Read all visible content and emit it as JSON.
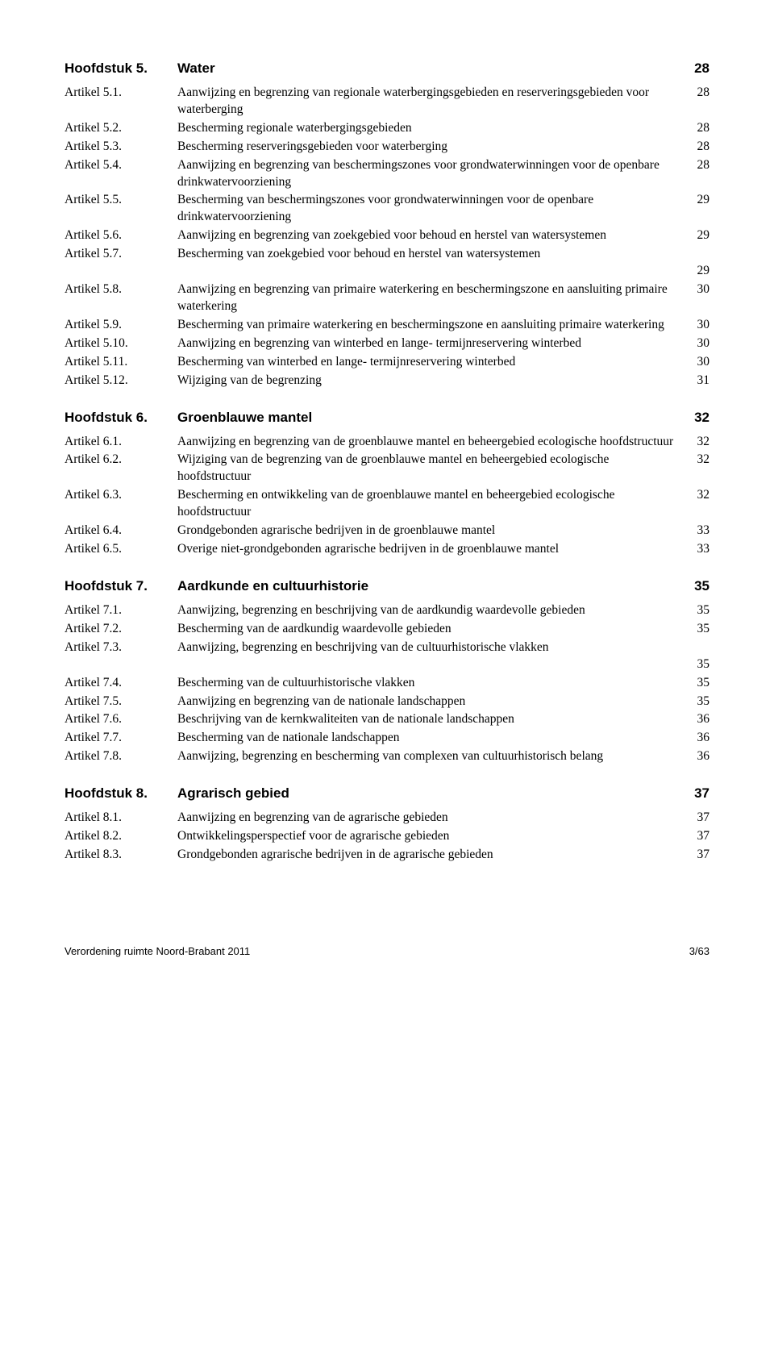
{
  "chapters": [
    {
      "label": "Hoofdstuk 5.",
      "title": "Water",
      "page": "28",
      "entries": [
        {
          "label": "Artikel 5.1.",
          "text": "Aanwijzing en begrenzing van regionale waterbergingsgebieden en reserveringsgebieden voor waterberging",
          "page": "28"
        },
        {
          "label": "Artikel 5.2.",
          "text": "Bescherming regionale waterbergingsgebieden",
          "page": "28"
        },
        {
          "label": "Artikel 5.3.",
          "text": "Bescherming reserveringsgebieden voor waterberging",
          "page": "28"
        },
        {
          "label": "Artikel 5.4.",
          "text": "Aanwijzing en begrenzing van beschermingszones voor grondwaterwinningen voor de openbare drinkwatervoorziening",
          "page": "28"
        },
        {
          "label": "Artikel 5.5.",
          "text": "Bescherming van beschermingszones voor grondwaterwinningen voor de openbare drinkwatervoorziening",
          "page": "29"
        },
        {
          "label": "Artikel 5.6.",
          "text": "Aanwijzing en begrenzing van zoekgebied voor behoud en herstel van watersystemen",
          "page": "29"
        },
        {
          "label": "Artikel 5.7.",
          "text": "Bescherming van zoekgebied voor behoud en herstel van watersystemen",
          "page": "29",
          "pageBelow": true
        },
        {
          "label": "Artikel 5.8.",
          "text": "Aanwijzing en begrenzing van primaire waterkering en beschermingszone en aansluiting primaire waterkering",
          "page": "30"
        },
        {
          "label": "Artikel 5.9.",
          "text": "Bescherming van primaire waterkering en beschermingszone en aansluiting primaire waterkering",
          "page": "30"
        },
        {
          "label": "Artikel 5.10.",
          "text": "Aanwijzing en begrenzing van winterbed en lange- termijnreservering winterbed",
          "page": "30"
        },
        {
          "label": "Artikel 5.11.",
          "text": "Bescherming van winterbed en lange- termijnreservering winterbed",
          "page": "30"
        },
        {
          "label": "Artikel 5.12.",
          "text": "Wijziging van de begrenzing",
          "page": "31"
        }
      ]
    },
    {
      "label": "Hoofdstuk 6.",
      "title": "Groenblauwe mantel",
      "page": "32",
      "entries": [
        {
          "label": "Artikel 6.1.",
          "text": "Aanwijzing en begrenzing van de groenblauwe mantel en beheergebied ecologische hoofdstructuur",
          "page": "32"
        },
        {
          "label": "Artikel 6.2.",
          "text": "Wijziging van de begrenzing van de groenblauwe mantel en beheergebied ecologische hoofdstructuur",
          "page": "32"
        },
        {
          "label": "Artikel 6.3.",
          "text": "Bescherming en ontwikkeling van de groenblauwe mantel en beheergebied ecologische hoofdstructuur",
          "page": "32"
        },
        {
          "label": "Artikel 6.4.",
          "text": "Grondgebonden agrarische bedrijven in de groenblauwe mantel",
          "page": "33"
        },
        {
          "label": "Artikel 6.5.",
          "text": "Overige niet-grondgebonden agrarische bedrijven in de groenblauwe mantel",
          "page": "33"
        }
      ]
    },
    {
      "label": "Hoofdstuk 7.",
      "title": "Aardkunde en cultuurhistorie",
      "page": "35",
      "entries": [
        {
          "label": "Artikel 7.1.",
          "text": "Aanwijzing, begrenzing en beschrijving van de aardkundig waardevolle gebieden",
          "page": "35"
        },
        {
          "label": "Artikel 7.2.",
          "text": "Bescherming van de aardkundig waardevolle gebieden",
          "page": "35"
        },
        {
          "label": "Artikel 7.3.",
          "text": "Aanwijzing, begrenzing en beschrijving van de cultuurhistorische vlakken",
          "page": "35",
          "pageBelow": true
        },
        {
          "label": "Artikel 7.4.",
          "text": "Bescherming van de cultuurhistorische vlakken",
          "page": "35"
        },
        {
          "label": "Artikel 7.5.",
          "text": "Aanwijzing en begrenzing van de nationale landschappen",
          "page": "35"
        },
        {
          "label": "Artikel 7.6.",
          "text": "Beschrijving van de kernkwaliteiten van de nationale landschappen",
          "page": "36"
        },
        {
          "label": "Artikel 7.7.",
          "text": "Bescherming van de nationale landschappen",
          "page": "36"
        },
        {
          "label": "Artikel 7.8.",
          "text": "Aanwijzing, begrenzing en bescherming van complexen van cultuurhistorisch belang",
          "page": "36"
        }
      ]
    },
    {
      "label": "Hoofdstuk 8.",
      "title": "Agrarisch gebied",
      "page": "37",
      "entries": [
        {
          "label": "Artikel 8.1.",
          "text": "Aanwijzing en begrenzing van de agrarische gebieden",
          "page": "37"
        },
        {
          "label": "Artikel 8.2.",
          "text": "Ontwikkelingsperspectief voor de agrarische gebieden",
          "page": "37"
        },
        {
          "label": "Artikel 8.3.",
          "text": "Grondgebonden agrarische bedrijven in de agrarische gebieden",
          "page": "37"
        }
      ]
    }
  ],
  "footer": {
    "left": "Verordening ruimte Noord-Brabant 2011",
    "right": "3/63"
  }
}
